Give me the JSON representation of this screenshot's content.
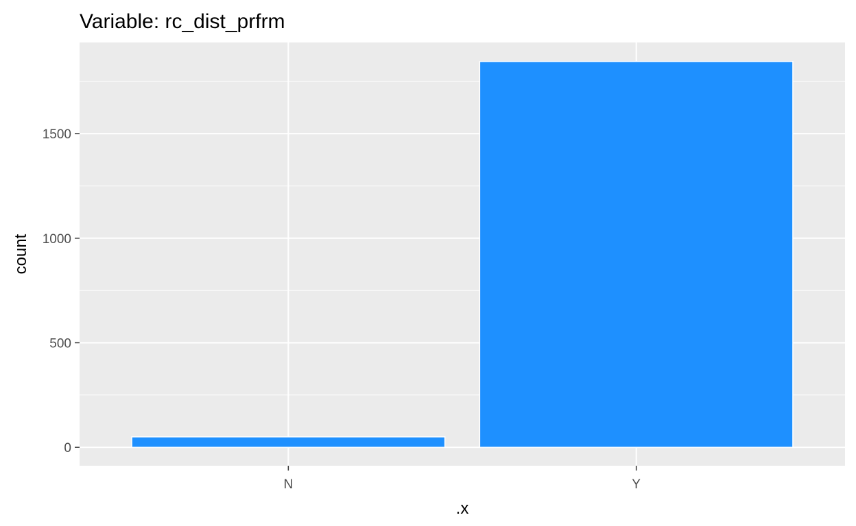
{
  "chart_data": {
    "type": "bar",
    "title": "Variable: rc_dist_prfrm",
    "xlabel": ".x",
    "ylabel": "count",
    "categories": [
      "N",
      "Y"
    ],
    "values": [
      50,
      1845
    ],
    "ylim": [
      -88,
      1936
    ],
    "yticks": [
      0,
      500,
      1000,
      1500
    ],
    "ytick_labels": [
      "0",
      "500",
      "1000",
      "1500"
    ],
    "grid": true,
    "legend": "none",
    "colors": {
      "bar_fill": "#1e90ff",
      "bar_outline": "#ffffff",
      "panel_background": "#ebebeb",
      "grid": "#ffffff",
      "tick_text": "#4d4d4d",
      "tick_mark": "#333333"
    }
  }
}
